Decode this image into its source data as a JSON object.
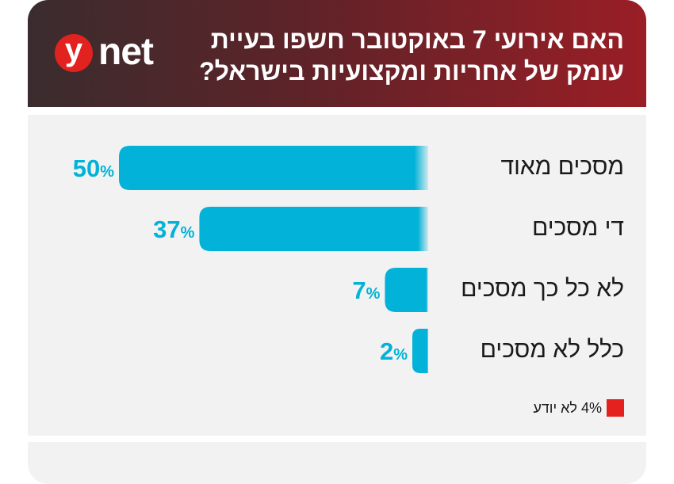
{
  "brand": {
    "logo_letter": "y",
    "logo_word": "net"
  },
  "colors": {
    "bar": "#02b2d8",
    "value_text": "#02b2d8",
    "dont_know": "#e5211f",
    "header_start": "#3a2c2e",
    "header_end": "#9a1e26"
  },
  "chart_data": {
    "type": "bar",
    "orientation": "horizontal",
    "title": "האם אירועי 7 באוקטובר חשפו בעיית עומק של אחריות ומקצועיות בישראל?",
    "categories": [
      "מסכים מאוד",
      "די מסכים",
      "לא כל כך מסכים",
      "כלל לא מסכים"
    ],
    "values": [
      50,
      37,
      7,
      2
    ],
    "value_labels": [
      "50%",
      "37%",
      "7%",
      "2%"
    ],
    "value_unit": "%",
    "xlim": [
      0,
      50
    ],
    "dont_know": {
      "label": "4% לא יודע",
      "value": 4
    }
  }
}
